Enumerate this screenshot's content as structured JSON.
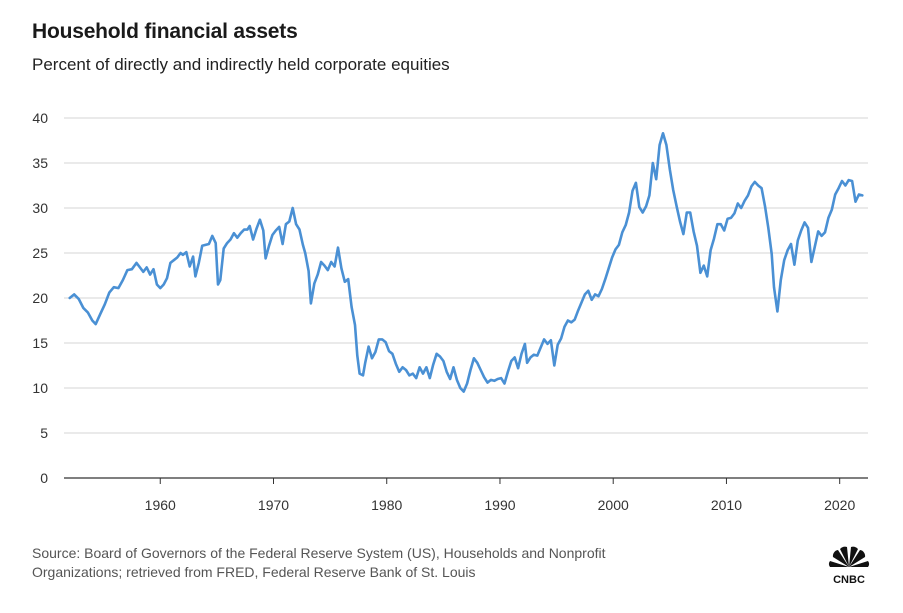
{
  "title": "Household financial assets",
  "subtitle": "Percent of directly and indirectly held corporate equities",
  "source_line1": "Source: Board of Governors of the Federal Reserve System (US), Households and Nonprofit",
  "source_line2": "Organizations; retrieved from FRED, Federal Reserve Bank of St. Louis",
  "logo_text": "CNBC",
  "colors": {
    "line": "#4a90d4",
    "grid": "#d4d4d4",
    "axis": "#333333"
  },
  "chart_data": {
    "type": "line",
    "title": "Household financial assets",
    "subtitle": "Percent of directly and indirectly held corporate equities",
    "xlabel": "",
    "ylabel": "",
    "xlim": [
      1951.5,
      2022.5
    ],
    "ylim": [
      0,
      42
    ],
    "x_ticks": [
      1960,
      1970,
      1980,
      1990,
      2000,
      2010,
      2020
    ],
    "x_tick_labels": [
      "1960",
      "1970",
      "1980",
      "1990",
      "2000",
      "2010",
      "2020"
    ],
    "y_ticks": [
      0,
      5,
      10,
      15,
      20,
      25,
      30,
      35,
      40
    ],
    "y_tick_labels": [
      "0",
      "5",
      "10",
      "15",
      "20",
      "25",
      "30",
      "35",
      "40"
    ],
    "grid": "horizontal",
    "legend": "none",
    "series": [
      {
        "values": [
          [
            1952.0,
            20.0
          ],
          [
            1952.4,
            20.4
          ],
          [
            1952.8,
            19.9
          ],
          [
            1953.2,
            18.9
          ],
          [
            1953.6,
            18.4
          ],
          [
            1954.0,
            17.5
          ],
          [
            1954.3,
            17.1
          ],
          [
            1954.7,
            18.2
          ],
          [
            1955.1,
            19.3
          ],
          [
            1955.5,
            20.6
          ],
          [
            1955.9,
            21.2
          ],
          [
            1956.3,
            21.1
          ],
          [
            1956.7,
            22.0
          ],
          [
            1957.1,
            23.1
          ],
          [
            1957.5,
            23.2
          ],
          [
            1957.9,
            23.9
          ],
          [
            1958.2,
            23.4
          ],
          [
            1958.5,
            22.9
          ],
          [
            1958.8,
            23.4
          ],
          [
            1959.1,
            22.6
          ],
          [
            1959.4,
            23.2
          ],
          [
            1959.7,
            21.5
          ],
          [
            1960.0,
            21.1
          ],
          [
            1960.3,
            21.5
          ],
          [
            1960.6,
            22.2
          ],
          [
            1960.9,
            23.9
          ],
          [
            1961.2,
            24.2
          ],
          [
            1961.5,
            24.5
          ],
          [
            1961.8,
            25.0
          ],
          [
            1962.0,
            24.8
          ],
          [
            1962.3,
            25.1
          ],
          [
            1962.6,
            23.5
          ],
          [
            1962.9,
            24.6
          ],
          [
            1963.1,
            22.4
          ],
          [
            1963.4,
            23.9
          ],
          [
            1963.7,
            25.8
          ],
          [
            1964.0,
            25.9
          ],
          [
            1964.3,
            26.0
          ],
          [
            1964.6,
            26.9
          ],
          [
            1964.9,
            26.1
          ],
          [
            1965.1,
            21.5
          ],
          [
            1965.3,
            22.0
          ],
          [
            1965.6,
            25.5
          ],
          [
            1965.9,
            26.1
          ],
          [
            1966.2,
            26.5
          ],
          [
            1966.5,
            27.2
          ],
          [
            1966.8,
            26.7
          ],
          [
            1967.1,
            27.2
          ],
          [
            1967.4,
            27.6
          ],
          [
            1967.7,
            27.6
          ],
          [
            1967.9,
            28.0
          ],
          [
            1968.2,
            26.5
          ],
          [
            1968.5,
            27.7
          ],
          [
            1968.8,
            28.7
          ],
          [
            1969.1,
            27.5
          ],
          [
            1969.3,
            24.4
          ],
          [
            1969.6,
            25.8
          ],
          [
            1969.9,
            27.0
          ],
          [
            1970.2,
            27.5
          ],
          [
            1970.5,
            27.9
          ],
          [
            1970.8,
            26.0
          ],
          [
            1971.1,
            28.2
          ],
          [
            1971.4,
            28.5
          ],
          [
            1971.7,
            30.0
          ],
          [
            1972.0,
            28.2
          ],
          [
            1972.3,
            27.6
          ],
          [
            1972.6,
            25.9
          ],
          [
            1972.8,
            25.0
          ],
          [
            1973.1,
            23.0
          ],
          [
            1973.3,
            19.4
          ],
          [
            1973.6,
            21.6
          ],
          [
            1973.9,
            22.6
          ],
          [
            1974.2,
            24.0
          ],
          [
            1974.5,
            23.6
          ],
          [
            1974.8,
            23.1
          ],
          [
            1975.1,
            24.0
          ],
          [
            1975.4,
            23.5
          ],
          [
            1975.7,
            25.6
          ],
          [
            1976.0,
            23.3
          ],
          [
            1976.3,
            21.8
          ],
          [
            1976.6,
            22.1
          ],
          [
            1976.9,
            19.0
          ],
          [
            1977.2,
            17.0
          ],
          [
            1977.4,
            13.6
          ],
          [
            1977.6,
            11.6
          ],
          [
            1977.9,
            11.4
          ],
          [
            1978.1,
            12.8
          ],
          [
            1978.4,
            14.6
          ],
          [
            1978.7,
            13.3
          ],
          [
            1979.0,
            14.0
          ],
          [
            1979.3,
            15.4
          ],
          [
            1979.6,
            15.4
          ],
          [
            1979.9,
            15.1
          ],
          [
            1980.2,
            14.1
          ],
          [
            1980.5,
            13.8
          ],
          [
            1980.8,
            12.7
          ],
          [
            1981.1,
            11.8
          ],
          [
            1981.4,
            12.3
          ],
          [
            1981.7,
            12.0
          ],
          [
            1982.0,
            11.4
          ],
          [
            1982.3,
            11.6
          ],
          [
            1982.6,
            11.1
          ],
          [
            1982.9,
            12.3
          ],
          [
            1983.2,
            11.6
          ],
          [
            1983.5,
            12.3
          ],
          [
            1983.8,
            11.1
          ],
          [
            1984.1,
            12.6
          ],
          [
            1984.4,
            13.8
          ],
          [
            1984.7,
            13.5
          ],
          [
            1985.0,
            13.0
          ],
          [
            1985.3,
            11.8
          ],
          [
            1985.6,
            11.0
          ],
          [
            1985.9,
            12.3
          ],
          [
            1986.2,
            10.9
          ],
          [
            1986.5,
            10.0
          ],
          [
            1986.8,
            9.6
          ],
          [
            1987.1,
            10.5
          ],
          [
            1987.4,
            12.0
          ],
          [
            1987.7,
            13.3
          ],
          [
            1988.0,
            12.8
          ],
          [
            1988.3,
            12.0
          ],
          [
            1988.6,
            11.2
          ],
          [
            1988.9,
            10.6
          ],
          [
            1989.2,
            10.9
          ],
          [
            1989.5,
            10.8
          ],
          [
            1989.8,
            11.0
          ],
          [
            1990.1,
            11.1
          ],
          [
            1990.4,
            10.5
          ],
          [
            1990.7,
            11.8
          ],
          [
            1991.0,
            13.0
          ],
          [
            1991.3,
            13.4
          ],
          [
            1991.6,
            12.2
          ],
          [
            1991.9,
            13.8
          ],
          [
            1992.2,
            14.9
          ],
          [
            1992.4,
            12.8
          ],
          [
            1992.7,
            13.4
          ],
          [
            1993.0,
            13.7
          ],
          [
            1993.3,
            13.6
          ],
          [
            1993.6,
            14.5
          ],
          [
            1993.9,
            15.4
          ],
          [
            1994.2,
            14.9
          ],
          [
            1994.5,
            15.3
          ],
          [
            1994.8,
            12.5
          ],
          [
            1995.1,
            14.8
          ],
          [
            1995.4,
            15.5
          ],
          [
            1995.7,
            16.8
          ],
          [
            1996.0,
            17.5
          ],
          [
            1996.3,
            17.3
          ],
          [
            1996.6,
            17.6
          ],
          [
            1996.9,
            18.6
          ],
          [
            1997.2,
            19.5
          ],
          [
            1997.5,
            20.4
          ],
          [
            1997.8,
            20.8
          ],
          [
            1998.1,
            19.8
          ],
          [
            1998.4,
            20.4
          ],
          [
            1998.7,
            20.2
          ],
          [
            1999.0,
            21.0
          ],
          [
            1999.3,
            22.1
          ],
          [
            1999.6,
            23.3
          ],
          [
            1999.9,
            24.5
          ],
          [
            2000.2,
            25.4
          ],
          [
            2000.5,
            25.9
          ],
          [
            2000.8,
            27.3
          ],
          [
            2001.1,
            28.1
          ],
          [
            2001.4,
            29.5
          ],
          [
            2001.7,
            31.9
          ],
          [
            2002.0,
            32.8
          ],
          [
            2002.3,
            30.1
          ],
          [
            2002.6,
            29.5
          ],
          [
            2002.9,
            30.2
          ],
          [
            2003.2,
            31.4
          ],
          [
            2003.5,
            35.0
          ],
          [
            2003.8,
            33.2
          ],
          [
            2004.1,
            37.0
          ],
          [
            2004.4,
            38.3
          ],
          [
            2004.7,
            37.0
          ],
          [
            2005.0,
            34.3
          ],
          [
            2005.3,
            32.0
          ],
          [
            2005.6,
            30.2
          ],
          [
            2005.9,
            28.5
          ],
          [
            2006.2,
            27.1
          ],
          [
            2006.5,
            29.5
          ],
          [
            2006.8,
            29.5
          ],
          [
            2007.1,
            27.4
          ],
          [
            2007.4,
            25.8
          ],
          [
            2007.7,
            22.8
          ],
          [
            2008.0,
            23.6
          ],
          [
            2008.3,
            22.4
          ],
          [
            2008.6,
            25.3
          ],
          [
            2008.9,
            26.6
          ],
          [
            2009.2,
            28.2
          ],
          [
            2009.5,
            28.2
          ],
          [
            2009.8,
            27.5
          ],
          [
            2010.1,
            28.8
          ],
          [
            2010.4,
            28.9
          ],
          [
            2010.7,
            29.4
          ],
          [
            2011.0,
            30.5
          ],
          [
            2011.3,
            30.0
          ],
          [
            2011.6,
            30.8
          ],
          [
            2011.9,
            31.4
          ],
          [
            2012.2,
            32.4
          ],
          [
            2012.5,
            32.9
          ],
          [
            2012.8,
            32.5
          ],
          [
            2013.1,
            32.2
          ],
          [
            2013.4,
            30.2
          ],
          [
            2013.7,
            27.8
          ],
          [
            2014.0,
            24.9
          ],
          [
            2014.2,
            21.2
          ],
          [
            2014.5,
            18.5
          ],
          [
            2014.8,
            22.0
          ],
          [
            2015.1,
            24.2
          ],
          [
            2015.4,
            25.3
          ],
          [
            2015.7,
            26.0
          ],
          [
            2016.0,
            23.7
          ],
          [
            2016.3,
            26.4
          ],
          [
            2016.6,
            27.5
          ],
          [
            2016.9,
            28.4
          ],
          [
            2017.2,
            27.8
          ],
          [
            2017.5,
            24.0
          ],
          [
            2017.8,
            25.7
          ],
          [
            2018.1,
            27.4
          ],
          [
            2018.4,
            26.9
          ],
          [
            2018.7,
            27.3
          ],
          [
            2019.0,
            28.9
          ],
          [
            2019.3,
            29.8
          ],
          [
            2019.6,
            31.5
          ],
          [
            2019.9,
            32.2
          ],
          [
            2020.2,
            33.0
          ],
          [
            2020.5,
            32.5
          ],
          [
            2020.8,
            33.1
          ],
          [
            2021.1,
            33.0
          ],
          [
            2021.4,
            30.7
          ],
          [
            2021.7,
            31.5
          ],
          [
            2022.0,
            31.4
          ]
        ]
      }
    ]
  }
}
